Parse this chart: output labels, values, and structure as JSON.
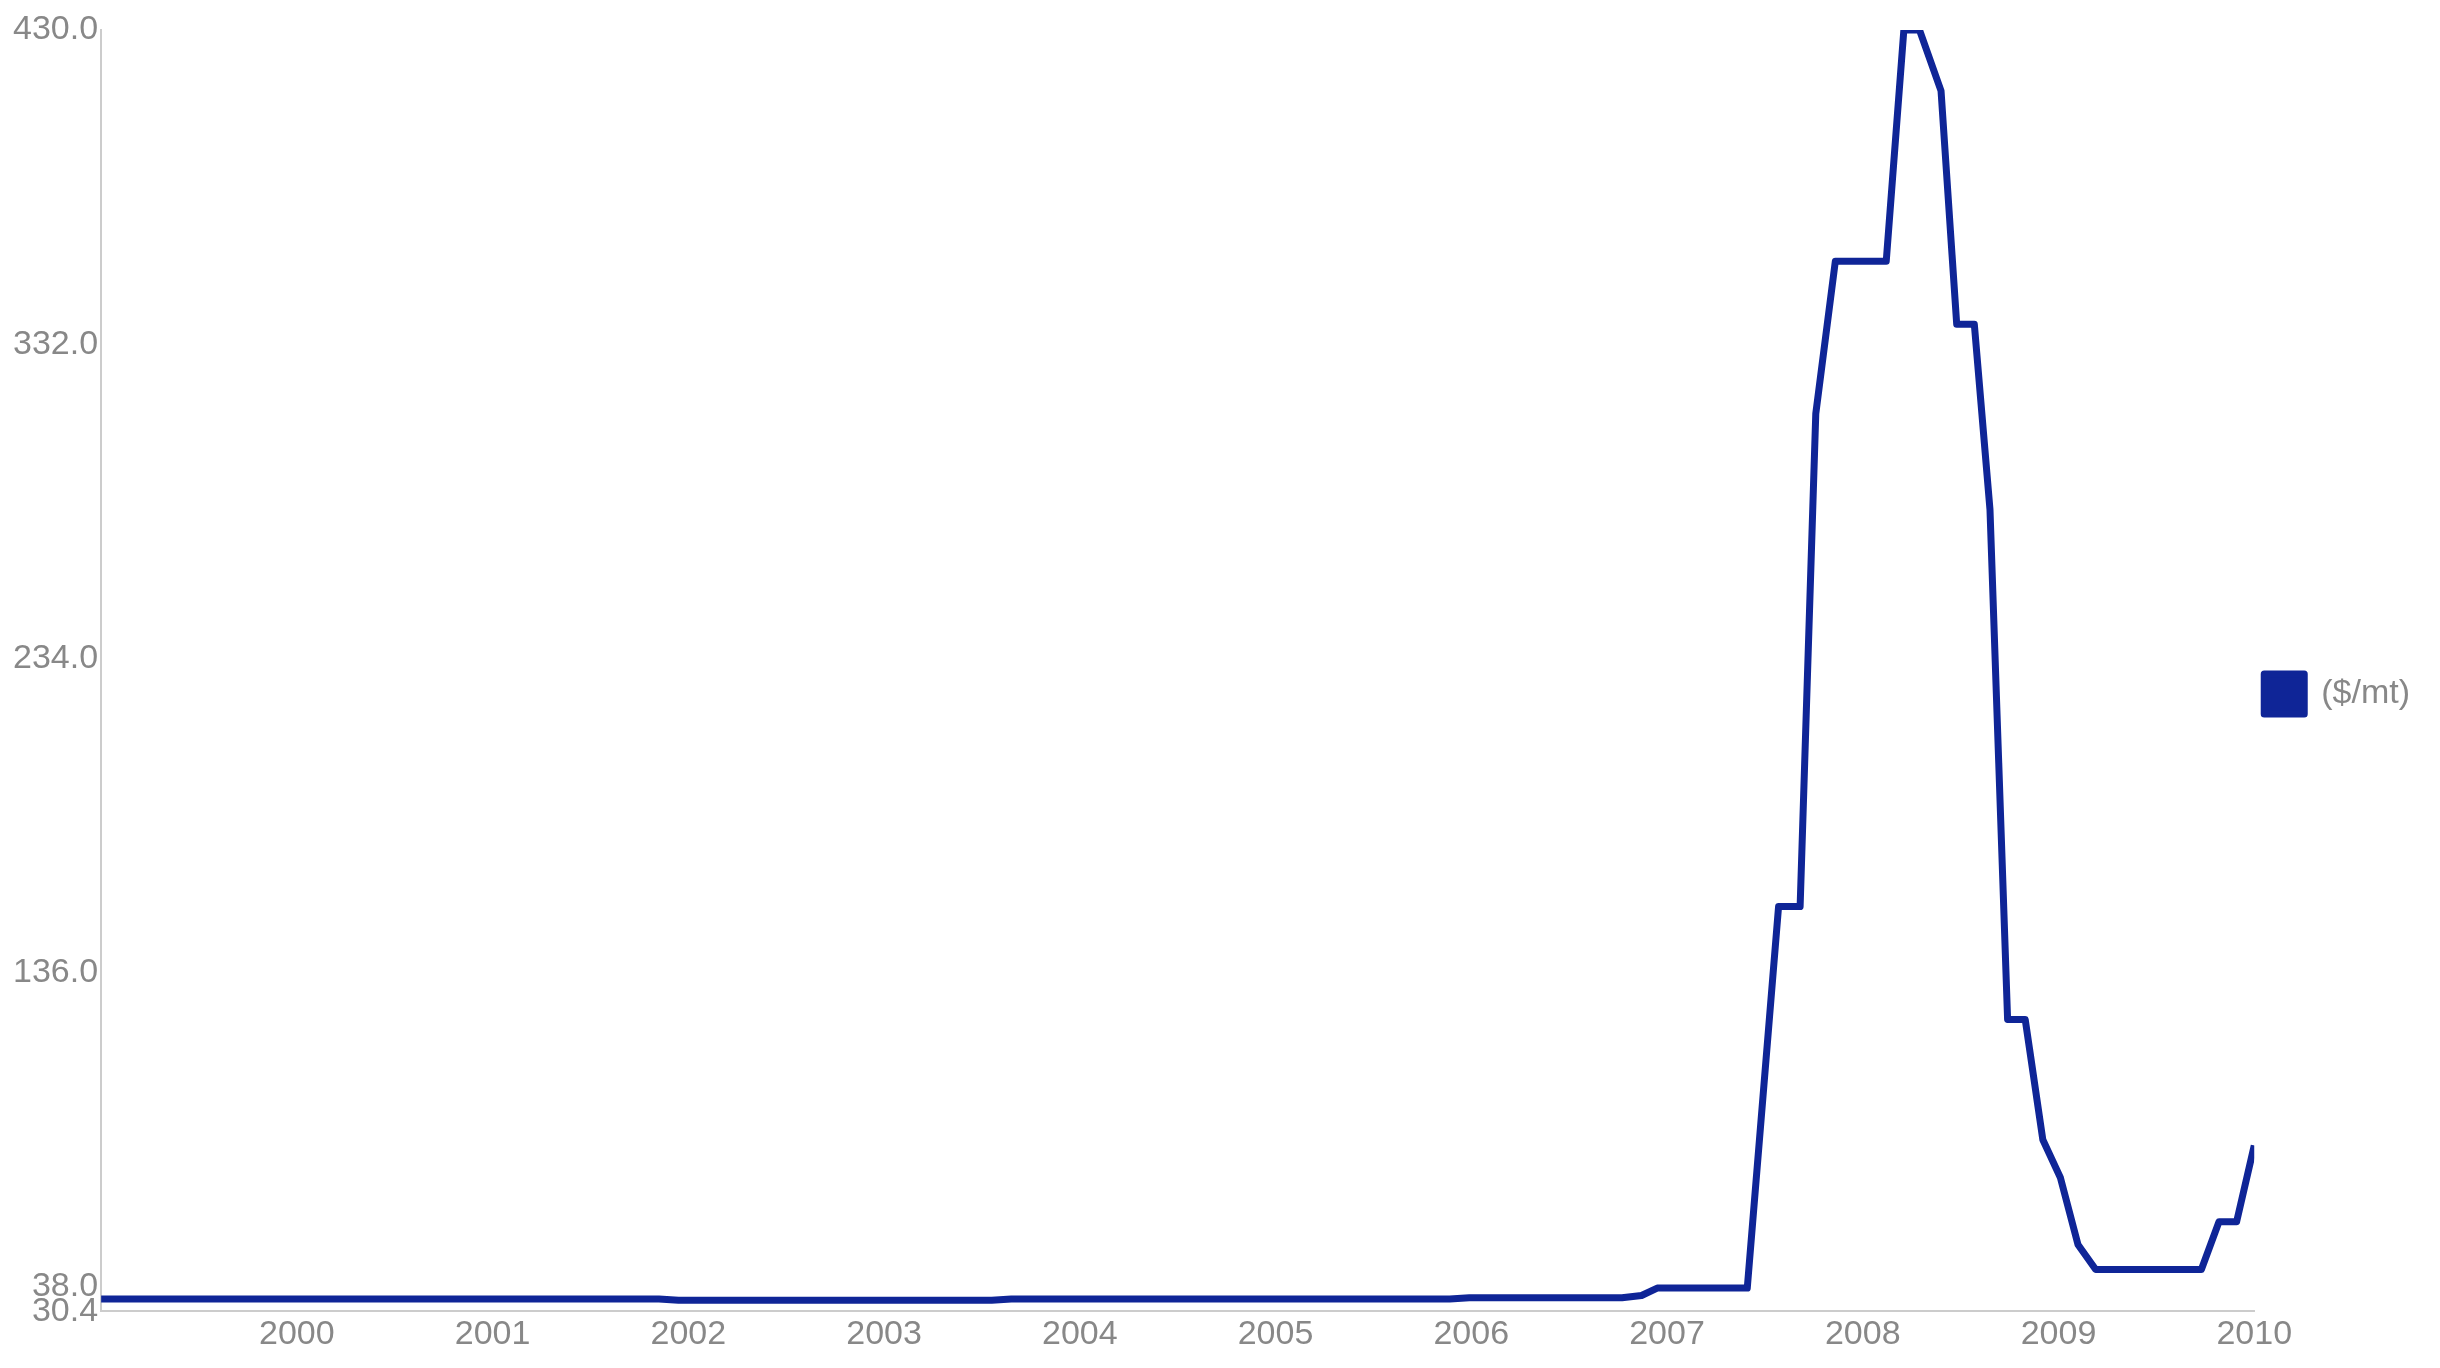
{
  "chart_data": {
    "type": "line",
    "xlim": [
      1999,
      2010
    ],
    "xticks": [
      2000,
      2001,
      2002,
      2003,
      2004,
      2005,
      2006,
      2007,
      2008,
      2009,
      2010
    ],
    "ylim": [
      30.4,
      430
    ],
    "yticks": [
      {
        "value": 30.4,
        "label": "30.4"
      },
      {
        "value": 38,
        "label": "38.0"
      },
      {
        "value": 136,
        "label": "136.0"
      },
      {
        "value": 234,
        "label": "234.0"
      },
      {
        "value": 332,
        "label": "332.0"
      },
      {
        "value": 430,
        "label": "430.0"
      }
    ],
    "grid": false,
    "legend": "right",
    "marker": "none",
    "line_style": "solid",
    "series": [
      {
        "name": "($/mt)",
        "color": "#0f2597",
        "x": [
          1999.0,
          2001.85,
          2001.95,
          2003.55,
          2003.65,
          2005.89,
          2005.99,
          2006.77,
          2006.87,
          2006.95,
          2007.41,
          2007.57,
          2007.68,
          2007.76,
          2007.86,
          2008.12,
          2008.21,
          2008.29,
          2008.4,
          2008.48,
          2008.57,
          2008.65,
          2008.74,
          2008.83,
          2008.92,
          2009.01,
          2009.1,
          2009.19,
          2009.73,
          2009.82,
          2009.91,
          2010.0
        ],
        "values": [
          34.2,
          34.2,
          33.8,
          33.8,
          34.2,
          34.2,
          34.6,
          34.6,
          35.3,
          37.6,
          37.6,
          156.6,
          156.6,
          310.3,
          357.9,
          357.9,
          430,
          430,
          411,
          338.2,
          338.2,
          280.4,
          121.4,
          121.4,
          83.9,
          72.0,
          51.1,
          43.4,
          43.4,
          58.3,
          58.3,
          82.1
        ]
      }
    ]
  }
}
